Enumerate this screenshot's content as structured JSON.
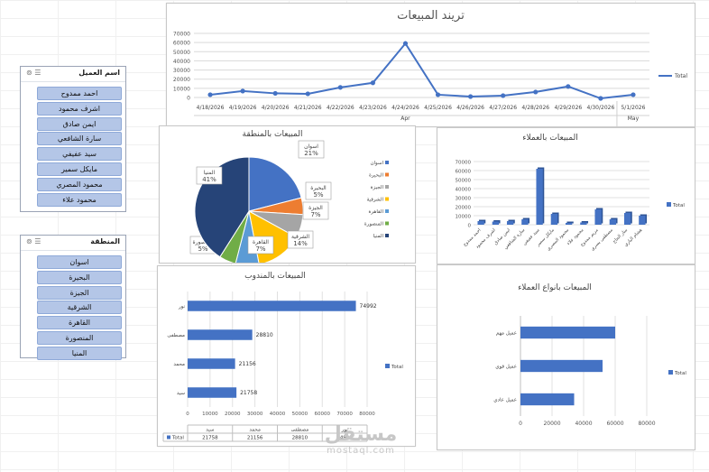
{
  "trend": {
    "title": "تريند المبيعات",
    "legend": "Total",
    "y_ticks": [
      "0",
      "10000",
      "20000",
      "30000",
      "40000",
      "50000",
      "60000",
      "70000"
    ],
    "months": [
      "Apr",
      "May"
    ]
  },
  "region": {
    "title": "المبيعات بالمنطقة"
  },
  "customers": {
    "title": "المبيعات بالعملاء",
    "legend": "Total",
    "y_ticks": [
      "0",
      "10000",
      "20000",
      "30000",
      "40000",
      "50000",
      "60000",
      "70000"
    ]
  },
  "rep": {
    "title": "المبيعات بالمندوب",
    "legend": "Total",
    "x_ticks": [
      "0",
      "10000",
      "20000",
      "30000",
      "40000",
      "50000",
      "60000",
      "70000",
      "80000"
    ]
  },
  "ctype": {
    "title": "المبيعات بانواع العملاء",
    "legend": "Total",
    "x_ticks": [
      "0",
      "20000",
      "40000",
      "60000",
      "80000"
    ]
  },
  "slicer_customer": {
    "title": "اسم العميل",
    "items": [
      "احمد ممدوح",
      "اشرف محمود",
      "ايمن صادق",
      "سارة الشافعي",
      "سيد عفيفي",
      "مايكل سمير",
      "محمود المصري",
      "محمود علاء"
    ]
  },
  "slicer_region": {
    "title": "المنطقة",
    "items": [
      "اسوان",
      "البحيرة",
      "الجيزة",
      "الشرقية",
      "القاهرة",
      "المنصورة",
      "المنيا"
    ]
  },
  "watermark": {
    "ar": "مستقل",
    "en": "mostaql.com"
  },
  "colors": {
    "accent": "#4472c4",
    "slicer_item": "#b4c6e7"
  },
  "chart_data": [
    {
      "type": "line",
      "title": "تريند المبيعات",
      "x": [
        "4/18/2026",
        "4/19/2026",
        "4/20/2026",
        "4/21/2026",
        "4/22/2026",
        "4/23/2026",
        "4/24/2026",
        "4/25/2026",
        "4/26/2026",
        "4/27/2026",
        "4/28/2026",
        "4/29/2026",
        "4/30/2026",
        "5/1/2026"
      ],
      "series": [
        {
          "name": "Total",
          "values": [
            3000,
            7000,
            4500,
            4000,
            11000,
            16000,
            59000,
            3000,
            1000,
            2000,
            6000,
            12000,
            -1000,
            3000
          ]
        }
      ],
      "ylim": [
        0,
        70000
      ]
    },
    {
      "type": "pie",
      "title": "المبيعات بالمنطقة",
      "categories": [
        "اسوان",
        "البحيرة",
        "الجيزة",
        "الشرقية",
        "القاهرة",
        "المنصورة",
        "المنيا"
      ],
      "values": [
        21,
        5,
        7,
        14,
        7,
        5,
        41
      ],
      "data_labels": [
        "اسوان 21%",
        "البحيرة 5%",
        "الجيزة 7%",
        "الشرقية 14%",
        "القاهرة 7%",
        "المنصورة 5%",
        "المنيا 41%"
      ],
      "legend": "right"
    },
    {
      "type": "bar",
      "title": "المبيعات بالعملاء",
      "categories": [
        "احمد ممدوح",
        "اشرف محمود",
        "ايمن صادق",
        "سارة الشافعي",
        "سيد عفيفي",
        "مايكل سمير",
        "محمود المصري",
        "محمود علاء",
        "مريم ممدوح",
        "مصطفى يسري",
        "منار الحاج",
        "هشام البازي"
      ],
      "series": [
        {
          "name": "Total",
          "values": [
            4000,
            3500,
            4000,
            6000,
            62000,
            12000,
            2000,
            2500,
            17000,
            6000,
            13000,
            10000
          ]
        }
      ],
      "ylim": [
        0,
        70000
      ]
    },
    {
      "type": "bar",
      "orientation": "horizontal",
      "title": "المبيعات بالمندوب",
      "categories": [
        "نور",
        "مصطفى",
        "محمد",
        "سيد"
      ],
      "series": [
        {
          "name": "Total",
          "values": [
            74992,
            28810,
            21156,
            21758
          ]
        }
      ],
      "xlim": [
        0,
        80000
      ]
    },
    {
      "type": "bar",
      "orientation": "horizontal",
      "title": "المبيعات بانواع العملاء",
      "categories": [
        "عميل مهم",
        "عميل قوي",
        "عميل عادي"
      ],
      "series": [
        {
          "name": "Total",
          "values": [
            60000,
            52000,
            34000
          ]
        }
      ],
      "xlim": [
        0,
        80000
      ]
    }
  ]
}
